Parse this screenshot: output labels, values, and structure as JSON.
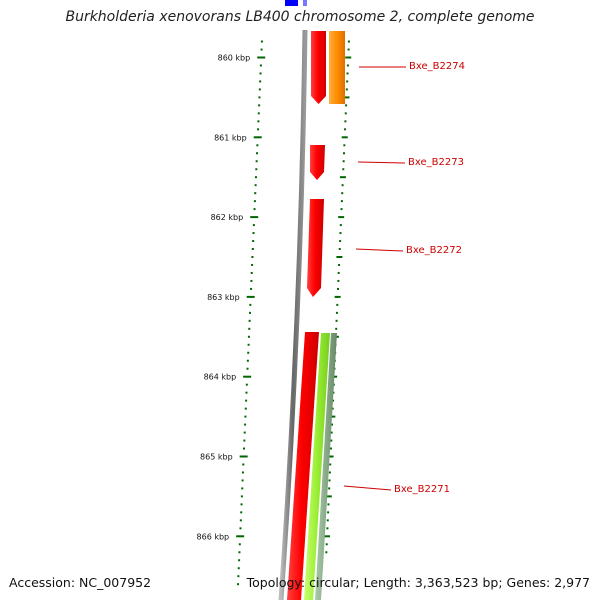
{
  "title": "Burkholderia xenovorans LB400 chromosome 2, complete genome",
  "accession": "Accession: NC_007952",
  "summary": "Topology: circular; Length: 3,363,523 bp; Genes: 2,977",
  "ruler": {
    "unit": "kbp",
    "labels": [
      "860 kbp",
      "861 kbp",
      "862 kbp",
      "863 kbp",
      "864 kbp",
      "865 kbp",
      "866 kbp"
    ],
    "values_kbp": [
      860,
      861,
      862,
      863,
      864,
      865,
      866
    ]
  },
  "genes": [
    {
      "label": "Bxe_B2274",
      "start_kbp": 859.75,
      "end_kbp": 860.55,
      "color": "#ff0000",
      "strand": "-"
    },
    {
      "label": "Bxe_B2273",
      "start_kbp": 861.1,
      "end_kbp": 861.5,
      "color": "#ff0000",
      "strand": "-"
    },
    {
      "label": "Bxe_B2272",
      "start_kbp": 861.8,
      "end_kbp": 863.0,
      "color": "#ff0000",
      "strand": "-"
    },
    {
      "label": "Bxe_B2271",
      "start_kbp": 863.45,
      "end_kbp": 866.8,
      "color": "#ff0000",
      "strand": "-"
    }
  ],
  "features": [
    {
      "name": "orange-feature",
      "start_kbp": 859.75,
      "end_kbp": 860.55,
      "color": "#ff8c00"
    },
    {
      "name": "lime-feature",
      "start_kbp": 863.45,
      "end_kbp": 866.8,
      "color": "#99ee33"
    },
    {
      "name": "gray-green-feature",
      "start_kbp": 863.45,
      "end_kbp": 866.8,
      "color": "#88aa88"
    },
    {
      "name": "blue-feature",
      "start_kbp": 859.4,
      "end_kbp": 859.75,
      "color": "#0000ff"
    }
  ],
  "colors": {
    "backbone": "#888888",
    "ticks": "#006600",
    "gene": "#ff0000",
    "label": "#cc0000"
  }
}
